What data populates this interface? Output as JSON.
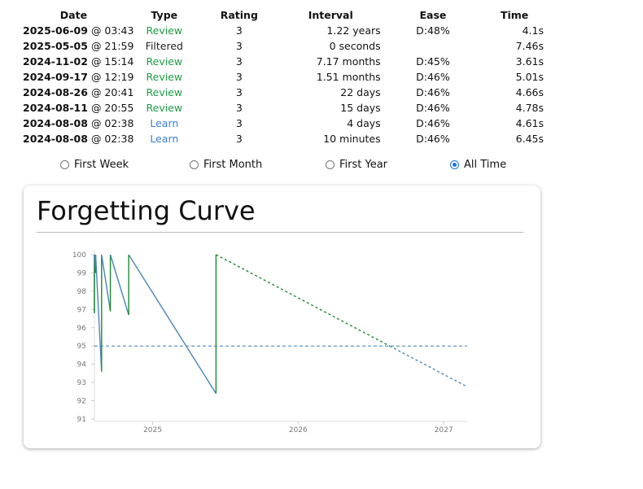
{
  "revlog": {
    "columns": [
      "Date",
      "Type",
      "Rating",
      "Interval",
      "Ease",
      "Time"
    ],
    "rows": [
      {
        "date": "2025-06-09",
        "time_of_day": " @ 03:43",
        "type": "Review",
        "type_class": "review",
        "rating": "3",
        "interval": "1.22 years",
        "ease": "D:48%",
        "time": "4.1s"
      },
      {
        "date": "2025-05-05",
        "time_of_day": " @ 21:59",
        "type": "Filtered",
        "type_class": "filtered",
        "rating": "3",
        "interval": "0 seconds",
        "ease": "",
        "time": "7.46s"
      },
      {
        "date": "2024-11-02",
        "time_of_day": " @ 15:14",
        "type": "Review",
        "type_class": "review",
        "rating": "3",
        "interval": "7.17 months",
        "ease": "D:45%",
        "time": "3.61s"
      },
      {
        "date": "2024-09-17",
        "time_of_day": " @ 12:19",
        "type": "Review",
        "type_class": "review",
        "rating": "3",
        "interval": "1.51 months",
        "ease": "D:46%",
        "time": "5.01s"
      },
      {
        "date": "2024-08-26",
        "time_of_day": " @ 20:41",
        "type": "Review",
        "type_class": "review",
        "rating": "3",
        "interval": "22 days",
        "ease": "D:46%",
        "time": "4.66s"
      },
      {
        "date": "2024-08-11",
        "time_of_day": " @ 20:55",
        "type": "Review",
        "type_class": "review",
        "rating": "3",
        "interval": "15 days",
        "ease": "D:46%",
        "time": "4.78s"
      },
      {
        "date": "2024-08-08",
        "time_of_day": " @ 02:38",
        "type": "Learn",
        "type_class": "learn",
        "rating": "3",
        "interval": "4 days",
        "ease": "D:46%",
        "time": "4.61s"
      },
      {
        "date": "2024-08-08",
        "time_of_day": " @ 02:38",
        "type": "Learn",
        "type_class": "learn",
        "rating": "3",
        "interval": "10 minutes",
        "ease": "D:46%",
        "time": "6.45s"
      }
    ]
  },
  "range_options": {
    "items": [
      {
        "label": "First Week",
        "selected": false
      },
      {
        "label": "First Month",
        "selected": false
      },
      {
        "label": "First Year",
        "selected": false
      },
      {
        "label": "All Time",
        "selected": true
      }
    ]
  },
  "colors": {
    "review": "#1e9b45",
    "learn": "#3b7fd6",
    "curve_rise": "#1b8a2f",
    "curve_fall": "#4a86b8",
    "threshold": "#3a7ab8",
    "accent": "#1a73e8"
  },
  "chart_data": {
    "type": "line",
    "title": "Forgetting Curve",
    "xlabel": "",
    "ylabel": "",
    "x_ticks": [
      "2025",
      "2026",
      "2027"
    ],
    "y_ticks": [
      91,
      92,
      93,
      94,
      95,
      96,
      97,
      98,
      99,
      100
    ],
    "ylim": [
      91,
      100
    ],
    "xlim": [
      "2024-08-08",
      "2027-03-01"
    ],
    "threshold": 95,
    "grid": false,
    "legend": "none",
    "series": [
      {
        "style": "solid",
        "points": [
          {
            "x": "2024-08-08",
            "y": 100
          },
          {
            "x": "2024-08-08",
            "y": 96.8
          },
          {
            "x": "2024-08-08",
            "y": 100
          },
          {
            "x": "2024-08-11",
            "y": 99.0
          },
          {
            "x": "2024-08-11",
            "y": 100
          },
          {
            "x": "2024-08-26",
            "y": 93.6
          },
          {
            "x": "2024-08-26",
            "y": 100
          },
          {
            "x": "2024-09-17",
            "y": 96.9
          },
          {
            "x": "2024-09-17",
            "y": 100
          },
          {
            "x": "2024-11-02",
            "y": 96.7
          },
          {
            "x": "2024-11-02",
            "y": 100
          },
          {
            "x": "2025-06-09",
            "y": 92.4
          },
          {
            "x": "2025-06-09",
            "y": 100
          }
        ]
      },
      {
        "style": "dashed",
        "points": [
          {
            "x": "2025-06-09",
            "y": 100
          },
          {
            "x": "2027-02-26",
            "y": 92.8
          }
        ]
      }
    ]
  }
}
